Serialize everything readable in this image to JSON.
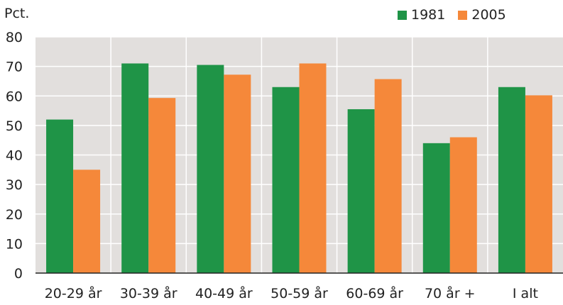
{
  "chart_data": {
    "type": "bar",
    "ylabel": "Pct.",
    "xlabel": "",
    "title": "",
    "categories": [
      "20-29 år",
      "30-39 år",
      "40-49 år",
      "50-59 år",
      "60-69 år",
      "70 år +",
      "I alt"
    ],
    "series": [
      {
        "name": "1981",
        "color": "#1f9447",
        "values": [
          52,
          71,
          70.5,
          63,
          55.5,
          44,
          63
        ]
      },
      {
        "name": "2005",
        "color": "#f5883a",
        "values": [
          35,
          59.3,
          67.2,
          71,
          65.7,
          46,
          60.2
        ]
      }
    ],
    "ylim": [
      0,
      80
    ],
    "yticks": [
      0,
      10,
      20,
      30,
      40,
      50,
      60,
      70,
      80
    ],
    "grid": true,
    "legend_position": "top-right",
    "plot_background": "#e2dfdd"
  }
}
